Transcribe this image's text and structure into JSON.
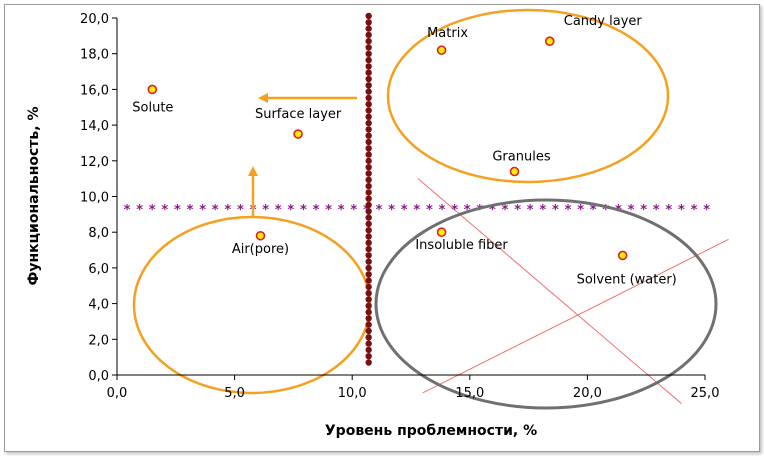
{
  "chart_data": {
    "type": "scatter",
    "xlabel": "Уровень проблемности, %",
    "ylabel": "Функциональность, %",
    "xlim": [
      0,
      25
    ],
    "ylim": [
      0,
      20
    ],
    "x_ticks": [
      "0,0",
      "5,0",
      "10,0",
      "15,0",
      "20,0",
      "25,0"
    ],
    "y_ticks": [
      "0,0",
      "2,0",
      "4,0",
      "6,0",
      "8,0",
      "10,0",
      "12,0",
      "14,0",
      "16,0",
      "18,0",
      "20,0"
    ],
    "grid": false,
    "points": [
      {
        "label": "Solute",
        "x": 1.5,
        "y": 16.0
      },
      {
        "label": "Surface layer",
        "x": 7.7,
        "y": 13.5
      },
      {
        "label": "Air(pore)",
        "x": 6.1,
        "y": 7.8
      },
      {
        "label": "Matrix",
        "x": 13.8,
        "y": 18.2
      },
      {
        "label": "Candy layer",
        "x": 18.4,
        "y": 18.7
      },
      {
        "label": "Granules",
        "x": 16.9,
        "y": 11.4
      },
      {
        "label": "Insoluble fiber",
        "x": 13.8,
        "y": 8.0
      },
      {
        "label": "Solvent (water)",
        "x": 21.5,
        "y": 6.7
      }
    ],
    "vertical_divider_x": 10.7,
    "horizontal_divider_y": 9.3,
    "colors": {
      "point_fill": "#ffee00",
      "point_stroke": "#e02020",
      "orange": "#f5a020",
      "gray": "#707070",
      "vertical_divider": "#7a1010",
      "horizontal_divider": "#8a1a8a",
      "thin_lines": "#f07070"
    }
  }
}
